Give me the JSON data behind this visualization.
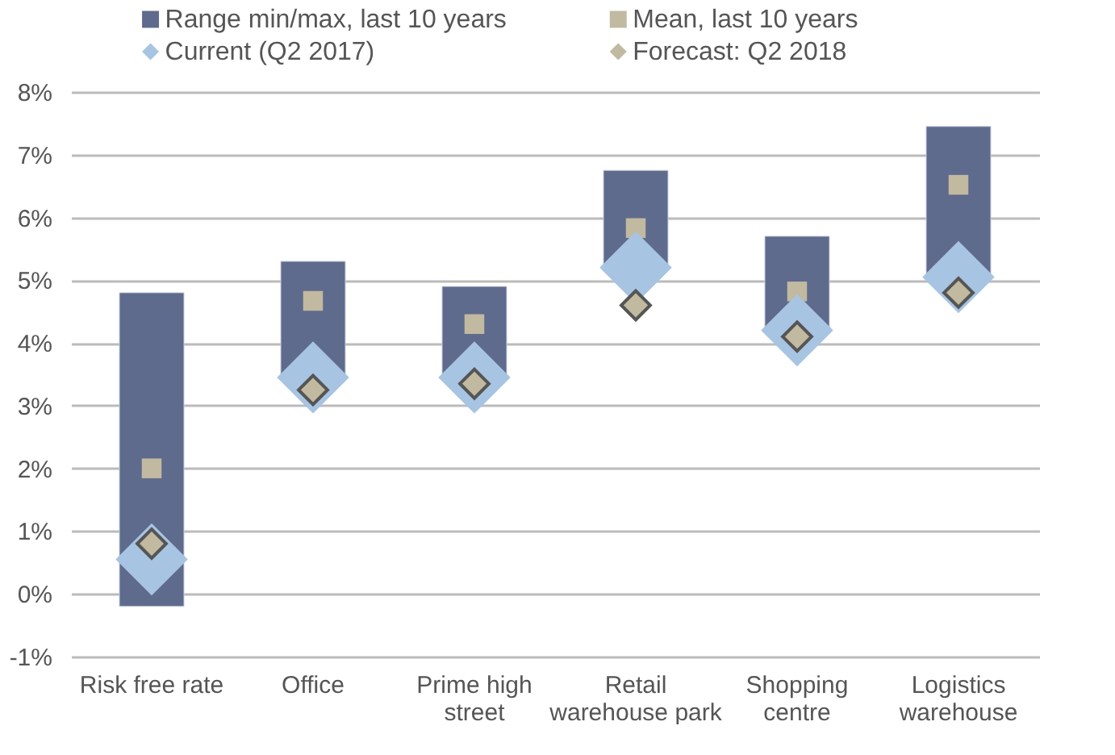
{
  "chart_data": {
    "type": "bar",
    "categories": [
      "Risk free rate",
      "Office",
      "Prime high street",
      "Retail warehouse park",
      "Shopping centre",
      "Logistics warehouse"
    ],
    "series": [
      {
        "name": "Range min/max, last 10 years",
        "color": "#5f6b8c",
        "base": [
          -0.2,
          3.4,
          3.45,
          5.15,
          4.2,
          5.05
        ],
        "values": [
          5.0,
          1.9,
          1.45,
          1.6,
          1.5,
          2.4
        ]
      },
      {
        "name": "Mean, last 10 years",
        "type": "scatter",
        "marker": "square",
        "color": "#c1b9a0",
        "values": [
          2.0,
          4.67,
          4.3,
          5.83,
          4.82,
          6.52
        ]
      },
      {
        "name": "Current (Q2 2017)",
        "type": "scatter",
        "marker": "diamond",
        "color": "#a7c4e2",
        "values": [
          0.55,
          3.45,
          3.45,
          5.2,
          4.2,
          5.05
        ]
      },
      {
        "name": "Forecast: Q2 2018",
        "type": "scatter",
        "marker": "diamond",
        "color": "#c1b9a0",
        "values": [
          0.8,
          3.25,
          3.35,
          4.6,
          4.1,
          4.8
        ]
      }
    ],
    "ylim": [
      -1,
      8
    ],
    "yticks": [
      {
        "value": -1,
        "label": "-1%"
      },
      {
        "value": 0,
        "label": "0%"
      },
      {
        "value": 1,
        "label": "1%"
      },
      {
        "value": 2,
        "label": "2%"
      },
      {
        "value": 3,
        "label": "3%"
      },
      {
        "value": 4,
        "label": "4%"
      },
      {
        "value": 5,
        "label": "5%"
      },
      {
        "value": 6,
        "label": "6%"
      },
      {
        "value": 7,
        "label": "7%"
      },
      {
        "value": 8,
        "label": "8%"
      }
    ],
    "grid": "y",
    "legend": "top"
  }
}
